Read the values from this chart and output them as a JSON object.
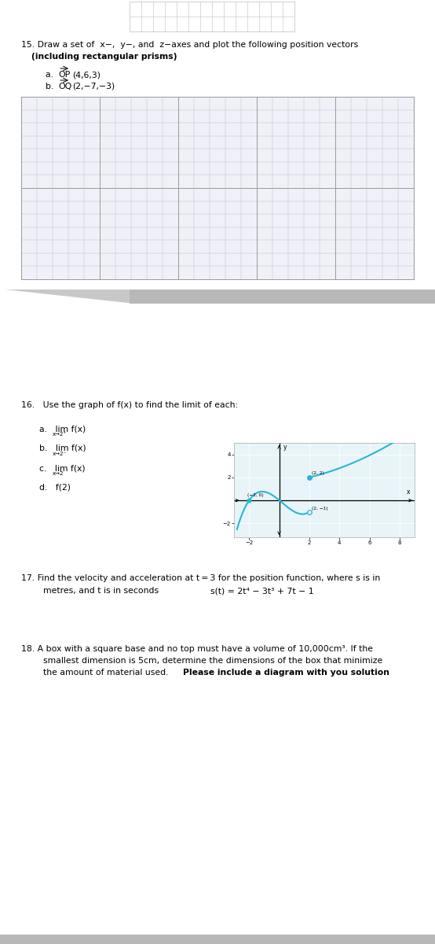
{
  "bg_color": "#ffffff",
  "q15_title": "15. Draw a set of  x−,  y−, and  z−axes and plot the following position vectors",
  "q15_bold": "(including rectangular prisms)",
  "q15_a_prefix": "a.  ",
  "q15_a_vec": "OP",
  "q15_a_suffix": "(4,6,3)",
  "q15_b_prefix": "b.  ",
  "q15_b_vec": "OQ",
  "q15_b_suffix": "(2,−7,−3)",
  "q16_title": "16.   Use the graph of f(x) to find the limit of each:",
  "q16_a": "a.   lim f(x)",
  "q16_a_sub": "x→2⁺",
  "q16_b": "b.   lim f(x)",
  "q16_b_sub": "x→2⁻",
  "q16_c": "c.   lim f(x)",
  "q16_c_sub": "x→2",
  "q16_d": "d.   f(2)",
  "q17_line1": "17. Find the velocity and acceleration at t = 3 for the position function, where s is in",
  "q17_line2": "metres, and t is in seconds",
  "q17_formula": "s(t) = 2t⁴ − 3t³ + 7t − 1",
  "q18_line1": "18. A box with a square base and no top must have a volume of 10,000cm³. If the",
  "q18_line2": "smallest dimension is 5cm, determine the dimensions of the box that minimize",
  "q18_line3_normal": "the amount of material used.  ",
  "q18_line3_bold": "Please include a diagram with you solution",
  "graph_xlim": [
    -3,
    9
  ],
  "graph_ylim": [
    -3.2,
    5
  ],
  "curve_color": "#29b6d4",
  "grid_line_color": "#cce8f0",
  "grid_bg": "#e8f4f8"
}
